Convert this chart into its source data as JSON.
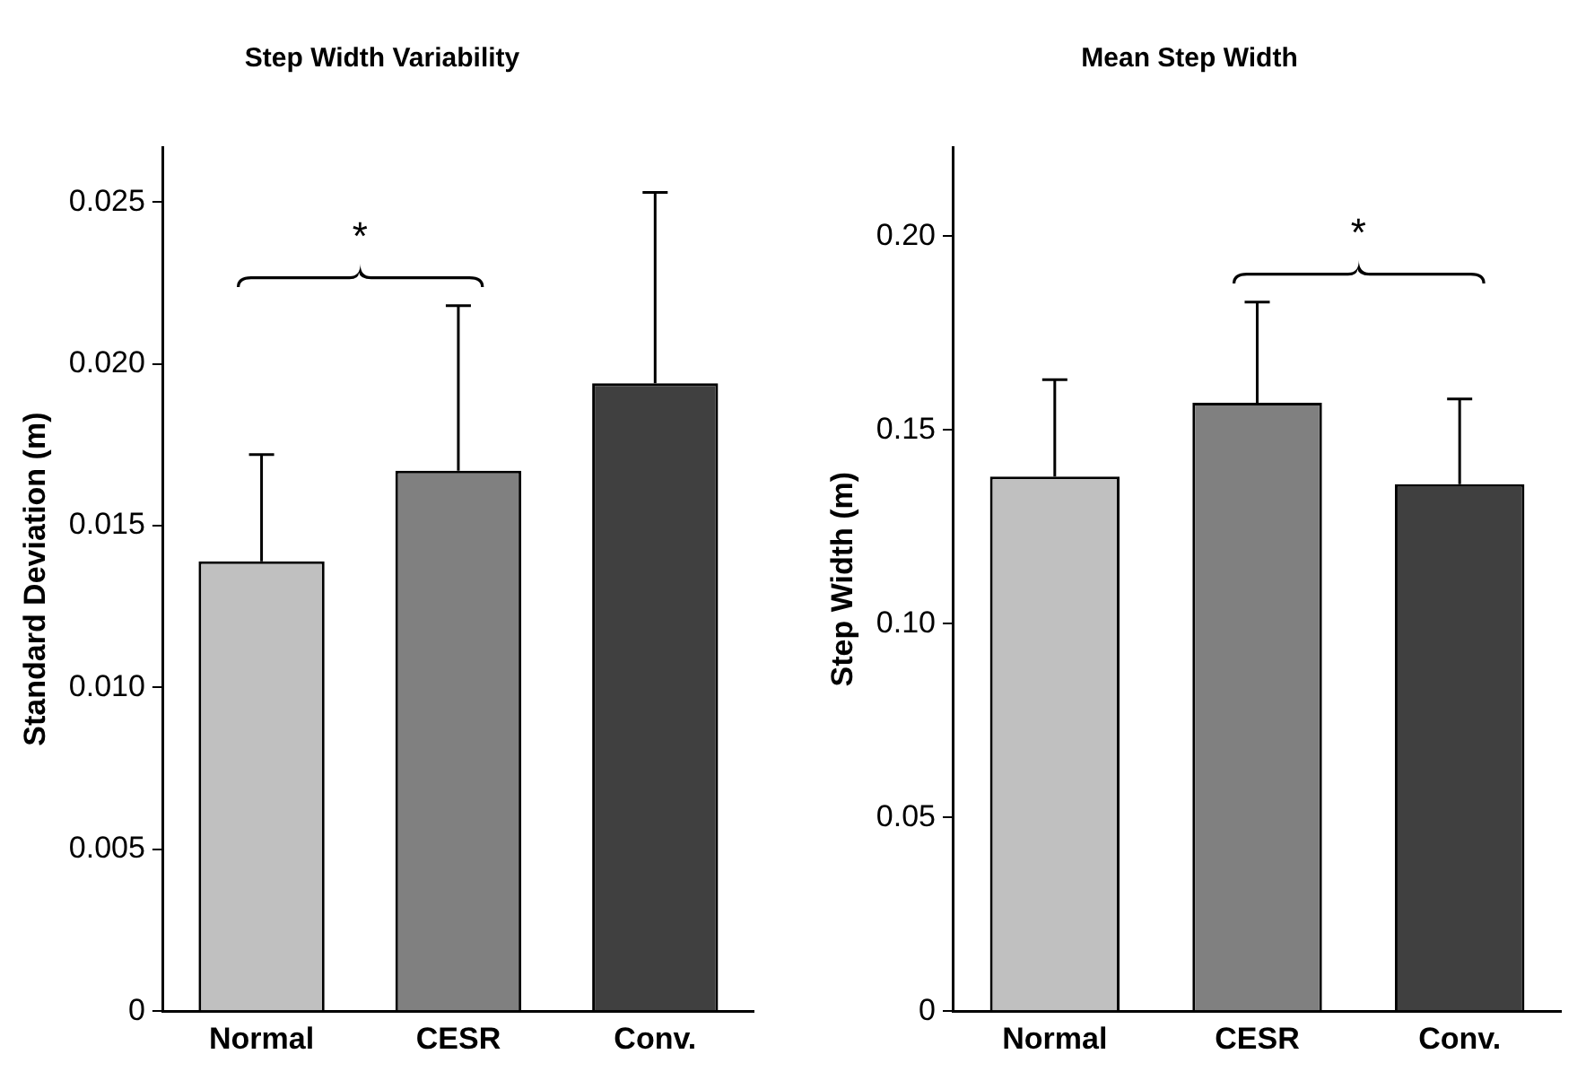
{
  "chart_data": [
    {
      "type": "bar",
      "title": "Step Width Variability",
      "ylabel": "Standard Deviation (m)",
      "categories": [
        "Normal",
        "CESR",
        "Conv."
      ],
      "values": [
        0.0139,
        0.0167,
        0.0194
      ],
      "colors": [
        "#c0c0c0",
        "#808080",
        "#404040"
      ],
      "errors": [
        [
          0.0139,
          0.0172
        ],
        [
          0.0167,
          0.0218
        ],
        [
          0.0194,
          0.0253
        ]
      ],
      "ylim": [
        0,
        0.0267
      ],
      "yticks": [
        0,
        {
          "value": 0.005,
          "label": "0.005"
        },
        {
          "value": 0.01,
          "label": "0.010"
        },
        {
          "value": 0.015,
          "label": "0.015"
        },
        {
          "value": 0.02,
          "label": "0.020"
        },
        {
          "value": 0.025,
          "label": "0.025"
        }
      ],
      "grid": false,
      "legend": false,
      "annotations": [
        "*"
      ]
    },
    {
      "type": "bar",
      "title": "Mean Step Width",
      "ylabel": "Step Width (m)",
      "categories": [
        "Normal",
        "CESR",
        "Conv."
      ],
      "values": [
        0.138,
        0.157,
        0.136
      ],
      "colors": [
        "#c0c0c0",
        "#808080",
        "#404040"
      ],
      "errors": [
        [
          0.138,
          0.163
        ],
        [
          0.157,
          0.183
        ],
        [
          0.136,
          0.158
        ]
      ],
      "ylim": [
        0,
        0.223
      ],
      "yticks": [
        0,
        {
          "value": 0.05,
          "label": "0.05"
        },
        {
          "value": 0.1,
          "label": "0.10"
        },
        {
          "value": 0.15,
          "label": "0.15"
        },
        {
          "value": 0.2,
          "label": "0.20"
        }
      ],
      "grid": false,
      "legend": false,
      "annotations": [
        "*"
      ]
    }
  ]
}
